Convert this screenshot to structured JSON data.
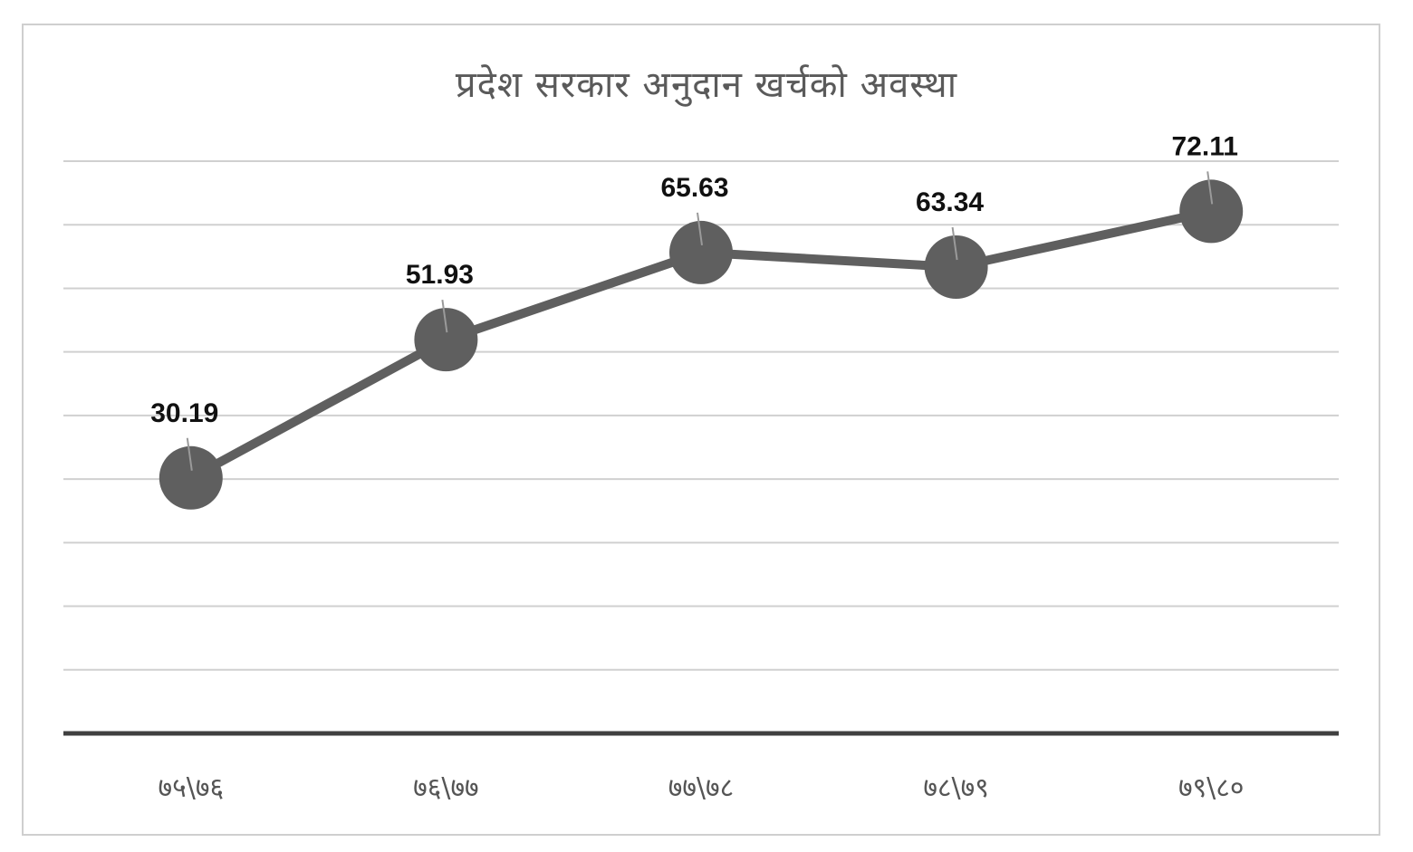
{
  "chart_data": {
    "type": "line",
    "title": "प्रदेश सरकार अनुदान खर्चको अवस्था",
    "categories": [
      "७५\\७६",
      "७६\\७७",
      "७७\\७८",
      "७८\\७९",
      "७९\\८०"
    ],
    "series": [
      {
        "values": [
          30.19,
          51.93,
          65.63,
          63.34,
          72.11
        ]
      }
    ],
    "ylim": [
      -10,
      80
    ],
    "grid": true,
    "data_labels": true,
    "colors": {
      "line": "#5f5f5f",
      "marker": "#5f5f5f",
      "grid": "#d0d0d0",
      "axis": "#404040"
    }
  }
}
